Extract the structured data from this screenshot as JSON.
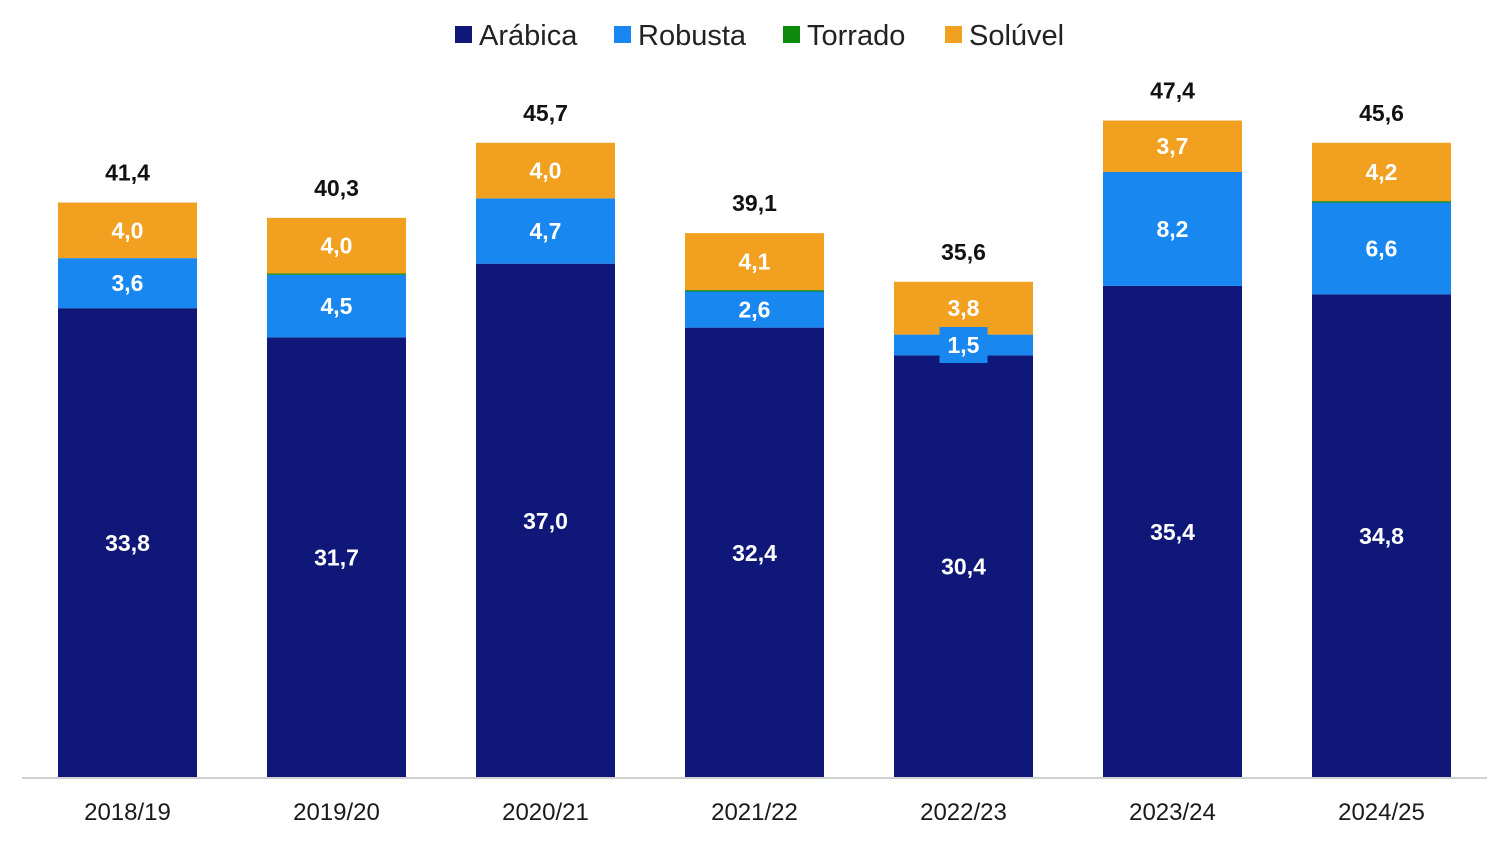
{
  "colors": {
    "arabica": "#0f1778",
    "robusta": "#1888f0",
    "torrado": "#0c8a0c",
    "soluvel": "#f2a020",
    "axis": "#d0d0d0"
  },
  "chart_data": {
    "type": "bar",
    "stacked": true,
    "legend_position": "top-center",
    "grid": false,
    "categories": [
      "2018/19",
      "2019/20",
      "2020/21",
      "2021/22",
      "2022/23",
      "2023/24",
      "2024/25"
    ],
    "series": [
      {
        "name": "Arábica",
        "color_key": "arabica",
        "values": [
          33.8,
          31.7,
          37.0,
          32.4,
          30.4,
          35.4,
          34.8
        ],
        "labels": [
          "33,8",
          "31,7",
          "37,0",
          "32,4",
          "30,4",
          "35,4",
          "34,8"
        ]
      },
      {
        "name": "Robusta",
        "color_key": "robusta",
        "values": [
          3.6,
          4.5,
          4.7,
          2.6,
          1.5,
          8.2,
          6.6
        ],
        "labels": [
          "3,6",
          "4,5",
          "4,7",
          "2,6",
          "1,5",
          "8,2",
          "6,6"
        ]
      },
      {
        "name": "Torrado",
        "color_key": "torrado",
        "values": [
          0.0,
          0.1,
          0.0,
          0.1,
          0.0,
          0.0,
          0.1
        ],
        "labels": []
      },
      {
        "name": "Solúvel",
        "color_key": "soluvel",
        "values": [
          4.0,
          4.0,
          4.0,
          4.1,
          3.8,
          3.7,
          4.2
        ],
        "labels": [
          "4,0",
          "4,0",
          "4,0",
          "4,1",
          "3,8",
          "3,7",
          "4,2"
        ]
      }
    ],
    "totals": [
      "41,4",
      "40,3",
      "45,7",
      "39,1",
      "35,6",
      "47,4",
      "45,6"
    ],
    "ylim": [
      0,
      50
    ]
  }
}
